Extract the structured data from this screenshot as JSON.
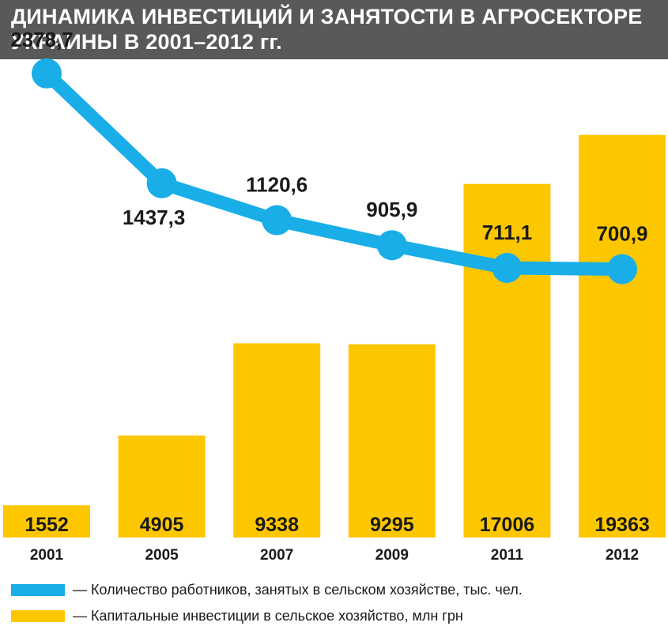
{
  "title_line1": "ДИНАМИКА ИНВЕСТИЦИЙ И ЗАНЯТОСТИ В АГРОСЕКТОРЕ",
  "title_line2": "УКРАИНЫ В 2001–2012 гг.",
  "colors": {
    "title_bg": "#58595b",
    "bar": "#fdc700",
    "line": "#19aee8",
    "text": "#1a1a1a"
  },
  "legend": {
    "line_label": "— Количество работников, занятых в сельском хозяйстве, тыс. чел.",
    "bar_label": "— Капитальные инвестиции в сельское хозяйство, млн грн"
  },
  "chart_data": {
    "type": "bar+line",
    "title": "ДИНАМИКА ИНВЕСТИЦИЙ И ЗАНЯТОСТИ В АГРОСЕКТОРЕ УКРАИНЫ В 2001–2012 гг.",
    "categories": [
      "2001",
      "2005",
      "2007",
      "2009",
      "2011",
      "2012"
    ],
    "series": [
      {
        "name": "Капитальные инвестиции в сельское хозяйство, млн грн",
        "kind": "bar",
        "values": [
          1552,
          4905,
          9338,
          9295,
          17006,
          19363
        ],
        "labels": [
          "1552",
          "4905",
          "9338",
          "9295",
          "17006",
          "19363"
        ]
      },
      {
        "name": "Количество работников, занятых в сельском хозяйстве, тыс. чел.",
        "kind": "line",
        "values": [
          2378.7,
          1437.3,
          1120.6,
          905.9,
          711.1,
          700.9
        ],
        "labels": [
          "2378,7",
          "1437,3",
          "1120,6",
          "905,9",
          "711,1",
          "700,9"
        ]
      }
    ],
    "bar_ylim": [
      0,
      23000
    ],
    "line_ylim": [
      -1600,
      2500
    ],
    "grid": false,
    "legend_position": "bottom"
  }
}
